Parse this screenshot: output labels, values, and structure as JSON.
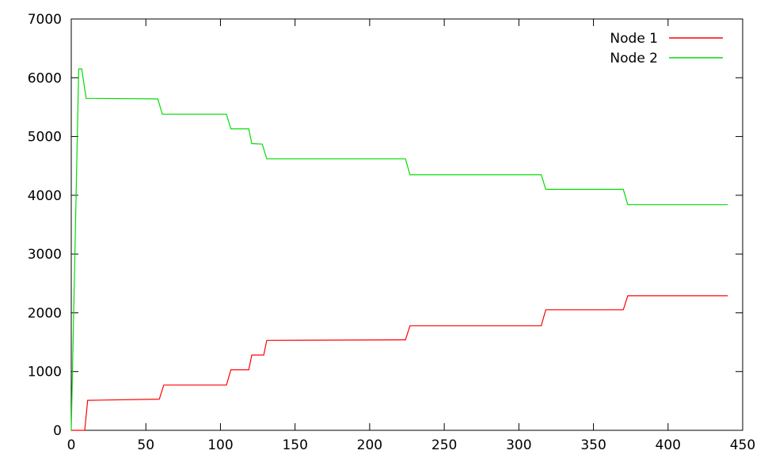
{
  "chart_data": {
    "type": "line",
    "title": "",
    "xlabel": "",
    "ylabel": "",
    "xlim": [
      0,
      450
    ],
    "ylim": [
      0,
      7000
    ],
    "x_ticks": [
      0,
      50,
      100,
      150,
      200,
      250,
      300,
      350,
      400,
      450
    ],
    "y_ticks": [
      0,
      1000,
      2000,
      3000,
      4000,
      5000,
      6000,
      7000
    ],
    "x_tick_labels": [
      "0",
      "50",
      "100",
      "150",
      "200",
      "250",
      "300",
      "350",
      "400",
      "450"
    ],
    "y_tick_labels": [
      "0",
      "1000",
      "2000",
      "3000",
      "4000",
      "5000",
      "6000",
      "7000"
    ],
    "grid": false,
    "legend_position": "top-right",
    "series": [
      {
        "name": "Node 1",
        "color": "#ff0000",
        "points": [
          [
            0,
            0
          ],
          [
            9,
            0
          ],
          [
            11,
            510
          ],
          [
            59,
            530
          ],
          [
            62,
            770
          ],
          [
            104,
            770
          ],
          [
            107,
            1030
          ],
          [
            119,
            1030
          ],
          [
            121,
            1280
          ],
          [
            129,
            1280
          ],
          [
            131,
            1530
          ],
          [
            224,
            1540
          ],
          [
            227,
            1780
          ],
          [
            315,
            1780
          ],
          [
            318,
            2050
          ],
          [
            370,
            2050
          ],
          [
            373,
            2290
          ],
          [
            440,
            2290
          ]
        ]
      },
      {
        "name": "Node 2",
        "color": "#00dd00",
        "points": [
          [
            0,
            0
          ],
          [
            5,
            6150
          ],
          [
            7,
            6150
          ],
          [
            10,
            5650
          ],
          [
            58,
            5640
          ],
          [
            61,
            5380
          ],
          [
            104,
            5380
          ],
          [
            107,
            5130
          ],
          [
            119,
            5130
          ],
          [
            121,
            4880
          ],
          [
            128,
            4870
          ],
          [
            131,
            4620
          ],
          [
            224,
            4620
          ],
          [
            227,
            4350
          ],
          [
            315,
            4350
          ],
          [
            318,
            4100
          ],
          [
            370,
            4100
          ],
          [
            373,
            3840
          ],
          [
            440,
            3840
          ]
        ]
      }
    ]
  }
}
